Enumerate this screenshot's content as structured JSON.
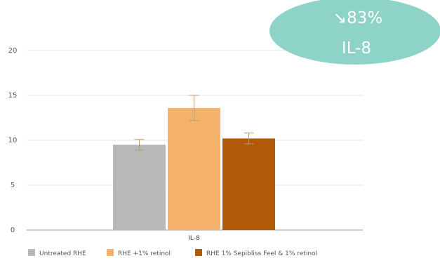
{
  "chart_data": {
    "type": "bar",
    "categories": [
      "IL-8"
    ],
    "series": [
      {
        "name": "Untreated RHE",
        "values": [
          9.5
        ],
        "error": [
          0.6
        ],
        "color": "#b8b8b8"
      },
      {
        "name": "RHE +1% retinol",
        "values": [
          13.6
        ],
        "error": [
          1.4
        ],
        "color": "#f4b26b"
      },
      {
        "name": "RHE 1% Sepibliss Feel & 1% retinol",
        "values": [
          10.2
        ],
        "error": [
          0.6
        ],
        "color": "#b05a07"
      }
    ],
    "ylim": [
      0,
      20
    ],
    "yticks": [
      0,
      5,
      10,
      15,
      20
    ],
    "grid": true,
    "legend": "bottom",
    "title": "",
    "xlabel": "",
    "ylabel": ""
  },
  "badge": {
    "line1": "↘83%",
    "line2": "IL-8",
    "color": "#8ed3c7"
  }
}
